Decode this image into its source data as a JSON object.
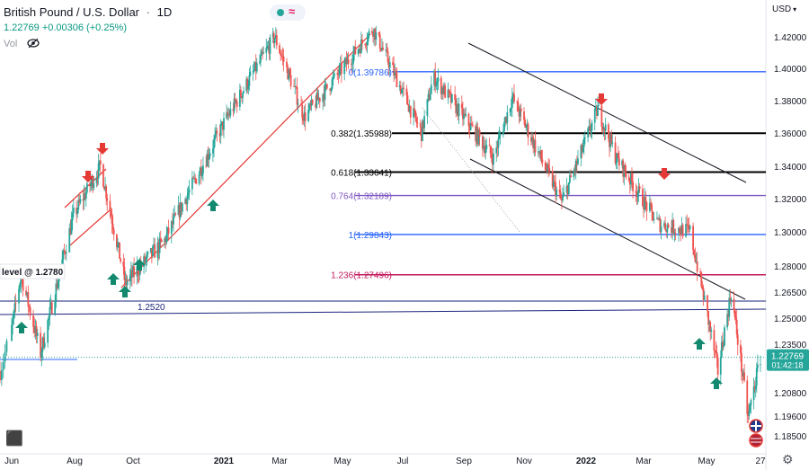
{
  "header": {
    "title": "British Pound / U.S. Dollar",
    "timeframe": "1D",
    "price_change": "1.22769 +0.00306 (+0.25%)",
    "volume_label": "Vol"
  },
  "currency_menu": "USD",
  "last_price": {
    "value": "1.22769",
    "countdown": "01:42:18",
    "color": "#26a69a"
  },
  "icons": [
    "eye-off-icon",
    "live-dot-icon",
    "wave-icon",
    "gear-icon",
    "uk-flag-icon",
    "us-flag-icon",
    "tradingview-logo-icon"
  ],
  "colors": {
    "up": "#26a69a",
    "down": "#ef5350",
    "up_arrow": "#138a6f",
    "down_arrow": "#e53935",
    "fib_blue": "#2962ff",
    "fib_black": "#000000",
    "fib_purple": "#7e57c2",
    "fib_pink": "#c2185b",
    "support_navy": "#1a237e",
    "channel_red": "#e53935",
    "channel_black": "#131722"
  },
  "chart_data": {
    "type": "candlestick",
    "symbol": "GBPUSD",
    "ylim": [
      1.175,
      1.426
    ],
    "y_ticks": [
      1.42,
      1.4,
      1.38,
      1.36,
      1.34,
      1.32,
      1.3,
      1.28,
      1.265,
      1.25,
      1.235,
      1.208,
      1.196,
      1.185
    ],
    "y_tick_labels": [
      "1.42000",
      "1.40000",
      "1.38000",
      "1.36000",
      "1.34000",
      "1.32000",
      "1.30000",
      "1.28000",
      "1.26500",
      "1.25000",
      "1.23500",
      "1.20800",
      "1.19600",
      "1.18500"
    ],
    "x_ticks": [
      "Jun",
      "Aug",
      "Oct",
      "2021",
      "Mar",
      "May",
      "Jul",
      "Sep",
      "Nov",
      "2022",
      "Mar",
      "May",
      "27"
    ],
    "close_path": [
      [
        "2020-05-25",
        1.22
      ],
      [
        "2020-06-10",
        1.275
      ],
      [
        "2020-06-29",
        1.23
      ],
      [
        "2020-07-31",
        1.31
      ],
      [
        "2020-08-28",
        1.34
      ],
      [
        "2020-09-23",
        1.27
      ],
      [
        "2020-11-02",
        1.295
      ],
      [
        "2020-12-31",
        1.365
      ],
      [
        "2021-02-24",
        1.42
      ],
      [
        "2021-03-25",
        1.37
      ],
      [
        "2021-06-01",
        1.425
      ],
      [
        "2021-07-20",
        1.36
      ],
      [
        "2021-08-01",
        1.395
      ],
      [
        "2021-10-01",
        1.345
      ],
      [
        "2021-10-20",
        1.382
      ],
      [
        "2021-12-08",
        1.318
      ],
      [
        "2022-01-13",
        1.375
      ],
      [
        "2022-02-01",
        1.345
      ],
      [
        "2022-03-15",
        1.305
      ],
      [
        "2022-04-15",
        1.3
      ],
      [
        "2022-05-13",
        1.22
      ],
      [
        "2022-05-27",
        1.265
      ],
      [
        "2022-06-14",
        1.195
      ],
      [
        "2022-06-27",
        1.2277
      ]
    ],
    "fibonacci_levels": [
      {
        "label": "0(1.39786)",
        "value": 1.39786,
        "color": "#2962ff"
      },
      {
        "label": "0.382(1.35988)",
        "value": 1.35988,
        "color": "#000000"
      },
      {
        "label": "0.618(1.33641)",
        "value": 1.33641,
        "color": "#000000"
      },
      {
        "label": "0.764(1.32189)",
        "value": 1.32189,
        "color": "#7e57c2"
      },
      {
        "label": "1(1.29843)",
        "value": 1.29843,
        "color": "#2962ff"
      },
      {
        "label": "1.236(1.27496)",
        "value": 1.27496,
        "color": "#c2185b"
      }
    ],
    "horizontal_lines": [
      {
        "label": "1.2520",
        "value": 1.252
      },
      {
        "label": "level @ 1.2780",
        "value": 1.278
      }
    ],
    "annotations": {
      "buy_arrows": 8,
      "sell_arrows": 4
    }
  }
}
